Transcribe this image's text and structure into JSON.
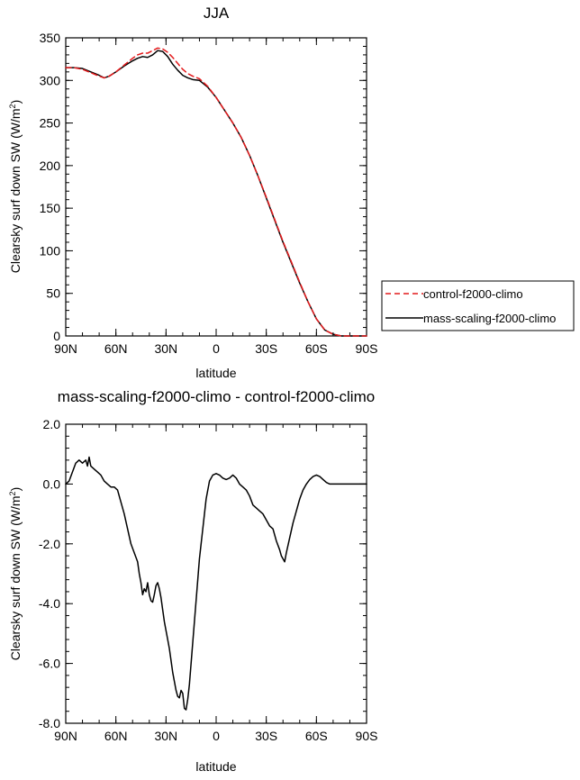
{
  "chart_data": [
    {
      "type": "line",
      "title": "JJA",
      "xlabel": "latitude",
      "ylabel": "Clearsky surf down SW (W/m²)",
      "ylabel_base": "Clearsky surf down SW (W/m",
      "ylabel_sup": "2",
      "ylabel_close": ")",
      "xlim": [
        90,
        -90
      ],
      "ylim": [
        0,
        350
      ],
      "xticks": [
        90,
        60,
        30,
        0,
        -30,
        -60,
        -90
      ],
      "xtick_labels": [
        "90N",
        "60N",
        "30N",
        "0",
        "30S",
        "60S",
        "90S"
      ],
      "yticks": [
        0,
        50,
        100,
        150,
        200,
        250,
        300,
        350
      ],
      "ytick_labels": [
        "0",
        "50",
        "100",
        "150",
        "200",
        "250",
        "300",
        "350"
      ],
      "legend_position": "outside-right",
      "series": [
        {
          "name": "control-f2000-climo",
          "color": "#e41a1c",
          "dash": "6,4",
          "x": [
            90,
            85,
            80,
            75,
            70,
            67,
            64,
            60,
            55,
            50,
            47,
            44,
            41,
            38,
            35,
            32,
            29,
            26,
            23,
            20,
            17,
            14,
            10,
            5,
            0,
            -5,
            -10,
            -15,
            -20,
            -25,
            -30,
            -35,
            -40,
            -45,
            -50,
            -55,
            -60,
            -65,
            -70,
            -75,
            -80,
            -85,
            -90
          ],
          "y": [
            315,
            315,
            313,
            309,
            305,
            303,
            305,
            310,
            318,
            326,
            330,
            332,
            332,
            335,
            338,
            337,
            333,
            327,
            320,
            313,
            308,
            305,
            302,
            293,
            280,
            265,
            250,
            233,
            212,
            188,
            163,
            137,
            111,
            87,
            63,
            40,
            20,
            7,
            2,
            0,
            0,
            0,
            0
          ]
        },
        {
          "name": "mass-scaling-f2000-climo",
          "color": "#000000",
          "dash": "",
          "x": [
            90,
            85,
            80,
            75,
            70,
            67,
            64,
            60,
            55,
            50,
            47,
            44,
            41,
            38,
            35,
            32,
            29,
            26,
            23,
            20,
            17,
            14,
            10,
            5,
            0,
            -5,
            -10,
            -15,
            -20,
            -25,
            -30,
            -35,
            -40,
            -45,
            -50,
            -55,
            -60,
            -65,
            -70,
            -75,
            -80,
            -85,
            -90
          ],
          "y": [
            315,
            315,
            314,
            310,
            306,
            303,
            305,
            310,
            317,
            323,
            326,
            328,
            327,
            330,
            335,
            334,
            328,
            319,
            312,
            306,
            303,
            301,
            300,
            292,
            280,
            265,
            250,
            233,
            212,
            188,
            162,
            136,
            110,
            86,
            62,
            40,
            20,
            7,
            2,
            0,
            0,
            0,
            0
          ]
        }
      ]
    },
    {
      "type": "line",
      "title": "mass-scaling-f2000-climo - control-f2000-climo",
      "xlabel": "latitude",
      "ylabel": "Clearsky surf down SW (W/m²)",
      "ylabel_base": "Clearsky surf down SW (W/m",
      "ylabel_sup": "2",
      "ylabel_close": ")",
      "xlim": [
        90,
        -90
      ],
      "ylim": [
        -8,
        2
      ],
      "xticks": [
        90,
        60,
        30,
        0,
        -30,
        -60,
        -90
      ],
      "xtick_labels": [
        "90N",
        "60N",
        "30N",
        "0",
        "30S",
        "60S",
        "90S"
      ],
      "yticks": [
        -8,
        -6,
        -4,
        -2,
        0,
        2
      ],
      "ytick_labels": [
        "-8.0",
        "-6.0",
        "-4.0",
        "-2.0",
        "0.0",
        "2.0"
      ],
      "series": [
        {
          "color": "#000000",
          "dash": "",
          "x": [
            90,
            88,
            86,
            84,
            82,
            80,
            78,
            77,
            76,
            75,
            73,
            71,
            69,
            67,
            65,
            63,
            61,
            59,
            57,
            55,
            53,
            51,
            49,
            47,
            46,
            45,
            44,
            43,
            42,
            41,
            40,
            39,
            38,
            37,
            36,
            35,
            34,
            33,
            32,
            31,
            30,
            29,
            28,
            27,
            26,
            25,
            24,
            23,
            22,
            21,
            20,
            19,
            18,
            17,
            16,
            15,
            14,
            13,
            12,
            11,
            10,
            8,
            6,
            4,
            2,
            0,
            -2,
            -4,
            -6,
            -8,
            -10,
            -12,
            -14,
            -16,
            -18,
            -20,
            -22,
            -24,
            -26,
            -28,
            -30,
            -32,
            -34,
            -36,
            -38,
            -39,
            -40,
            -41,
            -42,
            -44,
            -46,
            -48,
            -50,
            -52,
            -54,
            -56,
            -58,
            -60,
            -62,
            -64,
            -66,
            -68,
            -70,
            -72,
            -75,
            -80,
            -85,
            -90
          ],
          "y": [
            0.0,
            0.1,
            0.4,
            0.7,
            0.8,
            0.7,
            0.8,
            0.6,
            0.9,
            0.6,
            0.5,
            0.4,
            0.3,
            0.1,
            0.0,
            -0.1,
            -0.1,
            -0.2,
            -0.6,
            -1.0,
            -1.5,
            -2.0,
            -2.3,
            -2.6,
            -3.0,
            -3.3,
            -3.7,
            -3.5,
            -3.6,
            -3.3,
            -3.7,
            -3.9,
            -3.95,
            -3.7,
            -3.4,
            -3.3,
            -3.5,
            -3.8,
            -4.2,
            -4.6,
            -4.9,
            -5.2,
            -5.5,
            -5.9,
            -6.3,
            -6.6,
            -6.9,
            -7.1,
            -7.15,
            -6.9,
            -7.0,
            -7.5,
            -7.55,
            -7.2,
            -6.7,
            -6.0,
            -5.3,
            -4.6,
            -3.9,
            -3.2,
            -2.5,
            -1.5,
            -0.5,
            0.1,
            0.3,
            0.35,
            0.3,
            0.2,
            0.15,
            0.2,
            0.3,
            0.2,
            0.0,
            -0.1,
            -0.2,
            -0.4,
            -0.7,
            -0.8,
            -0.9,
            -1.0,
            -1.2,
            -1.4,
            -1.5,
            -1.9,
            -2.2,
            -2.4,
            -2.5,
            -2.6,
            -2.3,
            -1.8,
            -1.3,
            -0.9,
            -0.5,
            -0.2,
            0.0,
            0.15,
            0.25,
            0.3,
            0.25,
            0.15,
            0.05,
            0.0,
            0.0,
            0.0,
            0.0,
            0.0,
            0.0,
            0.0
          ]
        }
      ]
    }
  ]
}
